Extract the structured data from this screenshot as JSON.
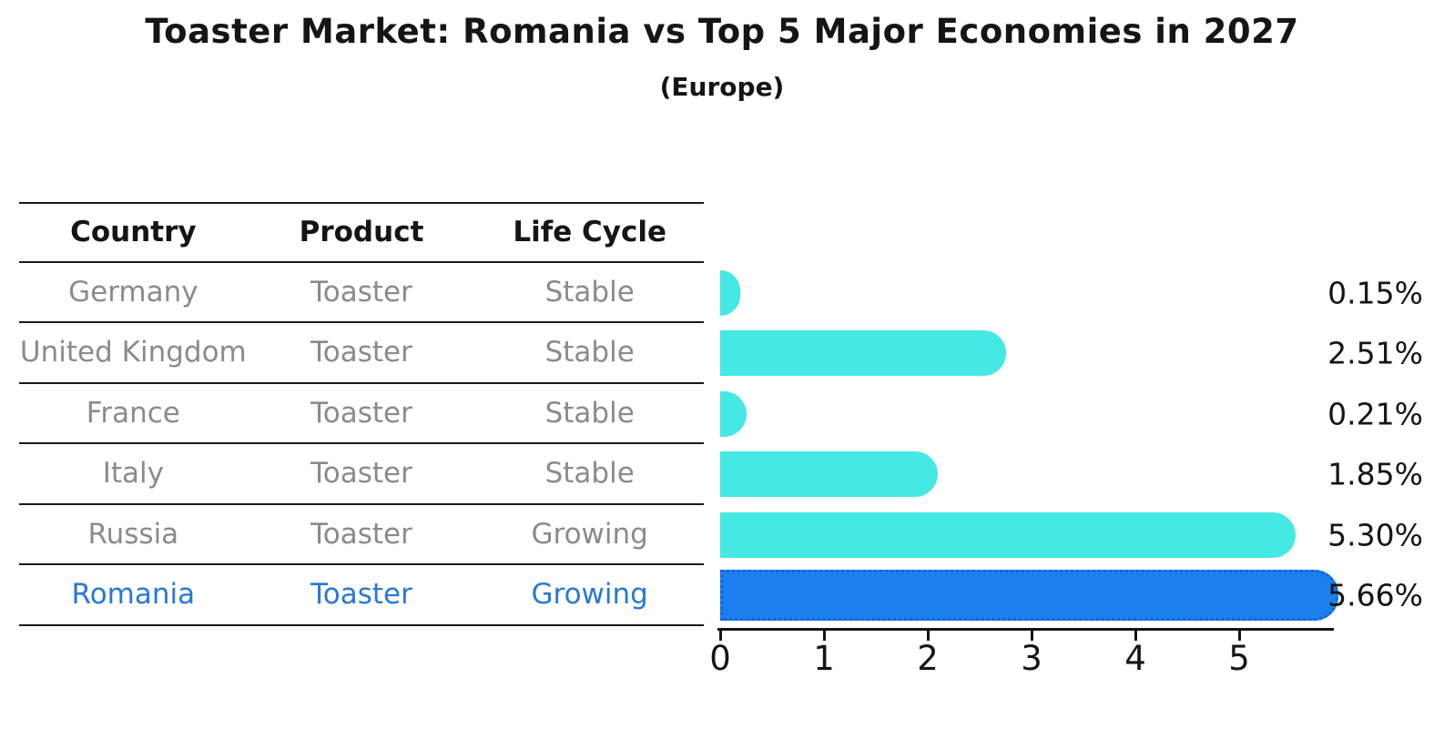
{
  "title": "Toaster Market: Romania vs Top 5 Major Economies in 2027",
  "subtitle": "(Europe)",
  "table": {
    "headers": [
      "Country",
      "Product",
      "Life Cycle"
    ],
    "rows": [
      {
        "country": "Germany",
        "product": "Toaster",
        "life_cycle": "Stable",
        "highlighted": false
      },
      {
        "country": "United Kingdom",
        "product": "Toaster",
        "life_cycle": "Stable",
        "highlighted": false
      },
      {
        "country": "France",
        "product": "Toaster",
        "life_cycle": "Stable",
        "highlighted": false
      },
      {
        "country": "Italy",
        "product": "Toaster",
        "life_cycle": "Stable",
        "highlighted": false
      },
      {
        "country": "Russia",
        "product": "Toaster",
        "life_cycle": "Growing",
        "highlighted": false
      },
      {
        "country": "Romania",
        "product": "Toaster",
        "life_cycle": "Growing",
        "highlighted": true
      }
    ]
  },
  "chart_data": {
    "type": "bar",
    "orientation": "horizontal",
    "title": "Toaster Market: Romania vs Top 5 Major Economies in 2027",
    "subtitle": "(Europe)",
    "categories": [
      "Germany",
      "United Kingdom",
      "France",
      "Italy",
      "Russia",
      "Romania"
    ],
    "values": [
      0.15,
      2.51,
      0.21,
      1.85,
      5.3,
      5.66
    ],
    "value_labels": [
      "0.15%",
      "2.51%",
      "0.21%",
      "1.85%",
      "5.30%",
      "5.66%"
    ],
    "unit": "percent",
    "highlight_index": 5,
    "x_ticks": [
      0,
      1,
      2,
      3,
      4,
      5
    ],
    "x_tick_labels": [
      "0",
      "1",
      "2",
      "3",
      "4",
      "5"
    ],
    "xlim": [
      0,
      5.92
    ],
    "grid": false,
    "legend": false,
    "bar_color": "#45e8e2",
    "highlight_bar_color": "#1b80ee",
    "highlight_border_color": "#1565d6",
    "highlight_text_color": "#2878d8",
    "table_text_color": "#8b8b8b",
    "axis_color": "#151515"
  }
}
